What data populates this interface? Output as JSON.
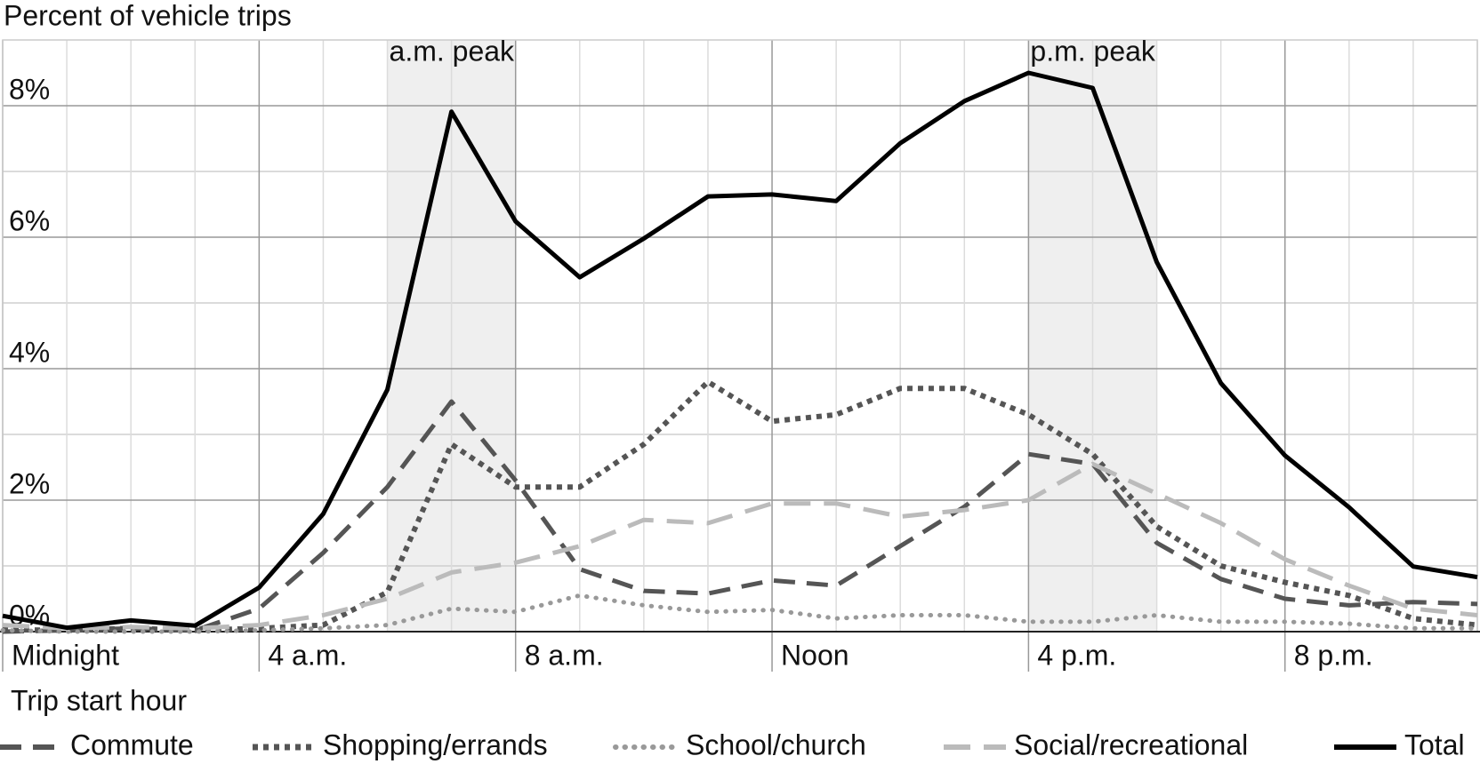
{
  "chart_data": {
    "type": "line",
    "y_axis_label": "Percent of vehicle trips",
    "x_axis_label": "Trip start hour",
    "x": [
      0,
      1,
      2,
      3,
      4,
      5,
      6,
      7,
      8,
      9,
      10,
      11,
      12,
      13,
      14,
      15,
      16,
      17,
      18,
      19,
      20,
      21,
      22,
      23
    ],
    "xlim": [
      0,
      23
    ],
    "xticks": [
      {
        "value": 0,
        "label": "Midnight"
      },
      {
        "value": 4,
        "label": "4 a.m."
      },
      {
        "value": 8,
        "label": "8 a.m."
      },
      {
        "value": 12,
        "label": "Noon"
      },
      {
        "value": 16,
        "label": "4 p.m."
      },
      {
        "value": 20,
        "label": "8 p.m."
      }
    ],
    "x_minor_ticks": [
      1,
      2,
      3,
      5,
      6,
      7,
      9,
      10,
      11,
      13,
      14,
      15,
      17,
      18,
      19,
      21,
      22,
      23
    ],
    "ylim": [
      0,
      9
    ],
    "yticks": [
      {
        "value": 0,
        "label": "0%"
      },
      {
        "value": 2,
        "label": "2%"
      },
      {
        "value": 4,
        "label": "4%"
      },
      {
        "value": 6,
        "label": "6%"
      },
      {
        "value": 8,
        "label": "8%"
      }
    ],
    "y_minor_ticks": [
      1,
      3,
      5,
      7
    ],
    "grid": true,
    "shaded_spans": [
      {
        "label": "a.m. peak",
        "from": 6,
        "to": 8
      },
      {
        "label": "p.m. peak",
        "from": 16,
        "to": 18
      }
    ],
    "legend": "bottom",
    "series": [
      {
        "name": "Commute",
        "color": "#555555",
        "line_style": "dashed",
        "values": [
          0,
          0.02,
          0.05,
          0.02,
          0.35,
          1.2,
          2.2,
          3.5,
          2.3,
          0.95,
          0.62,
          0.58,
          0.78,
          0.7,
          1.3,
          1.9,
          2.7,
          2.55,
          1.35,
          0.8,
          0.5,
          0.4,
          0.45,
          0.42
        ]
      },
      {
        "name": "Shopping/errands",
        "color": "#555555",
        "line_style": "dense-dotted",
        "values": [
          0.03,
          0.02,
          0.05,
          0.02,
          0.05,
          0.1,
          0.6,
          2.85,
          2.2,
          2.2,
          2.85,
          3.8,
          3.2,
          3.3,
          3.7,
          3.7,
          3.3,
          2.7,
          1.6,
          1.0,
          0.75,
          0.55,
          0.2,
          0.1
        ]
      },
      {
        "name": "School/church",
        "color": "#999999",
        "line_style": "dotted",
        "values": [
          0.02,
          0,
          0,
          0,
          0.02,
          0.05,
          0.1,
          0.35,
          0.3,
          0.55,
          0.4,
          0.3,
          0.33,
          0.2,
          0.25,
          0.25,
          0.15,
          0.15,
          0.25,
          0.15,
          0.15,
          0.12,
          0.05,
          0.05
        ]
      },
      {
        "name": "Social/recreational",
        "color": "#bbbbbb",
        "line_style": "long-dashed",
        "values": [
          0.1,
          0.05,
          0.07,
          0.05,
          0.1,
          0.25,
          0.5,
          0.9,
          1.05,
          1.3,
          1.7,
          1.65,
          1.95,
          1.95,
          1.75,
          1.85,
          2.0,
          2.55,
          2.1,
          1.65,
          1.1,
          0.7,
          0.35,
          0.25
        ]
      },
      {
        "name": "Total",
        "color": "#000000",
        "line_style": "solid",
        "values": [
          0.24,
          0.06,
          0.17,
          0.09,
          0.67,
          1.79,
          3.68,
          7.91,
          6.24,
          5.39,
          5.98,
          6.62,
          6.65,
          6.55,
          7.43,
          8.07,
          8.5,
          8.27,
          5.62,
          3.78,
          2.68,
          1.89,
          0.99,
          0.83
        ]
      }
    ]
  }
}
